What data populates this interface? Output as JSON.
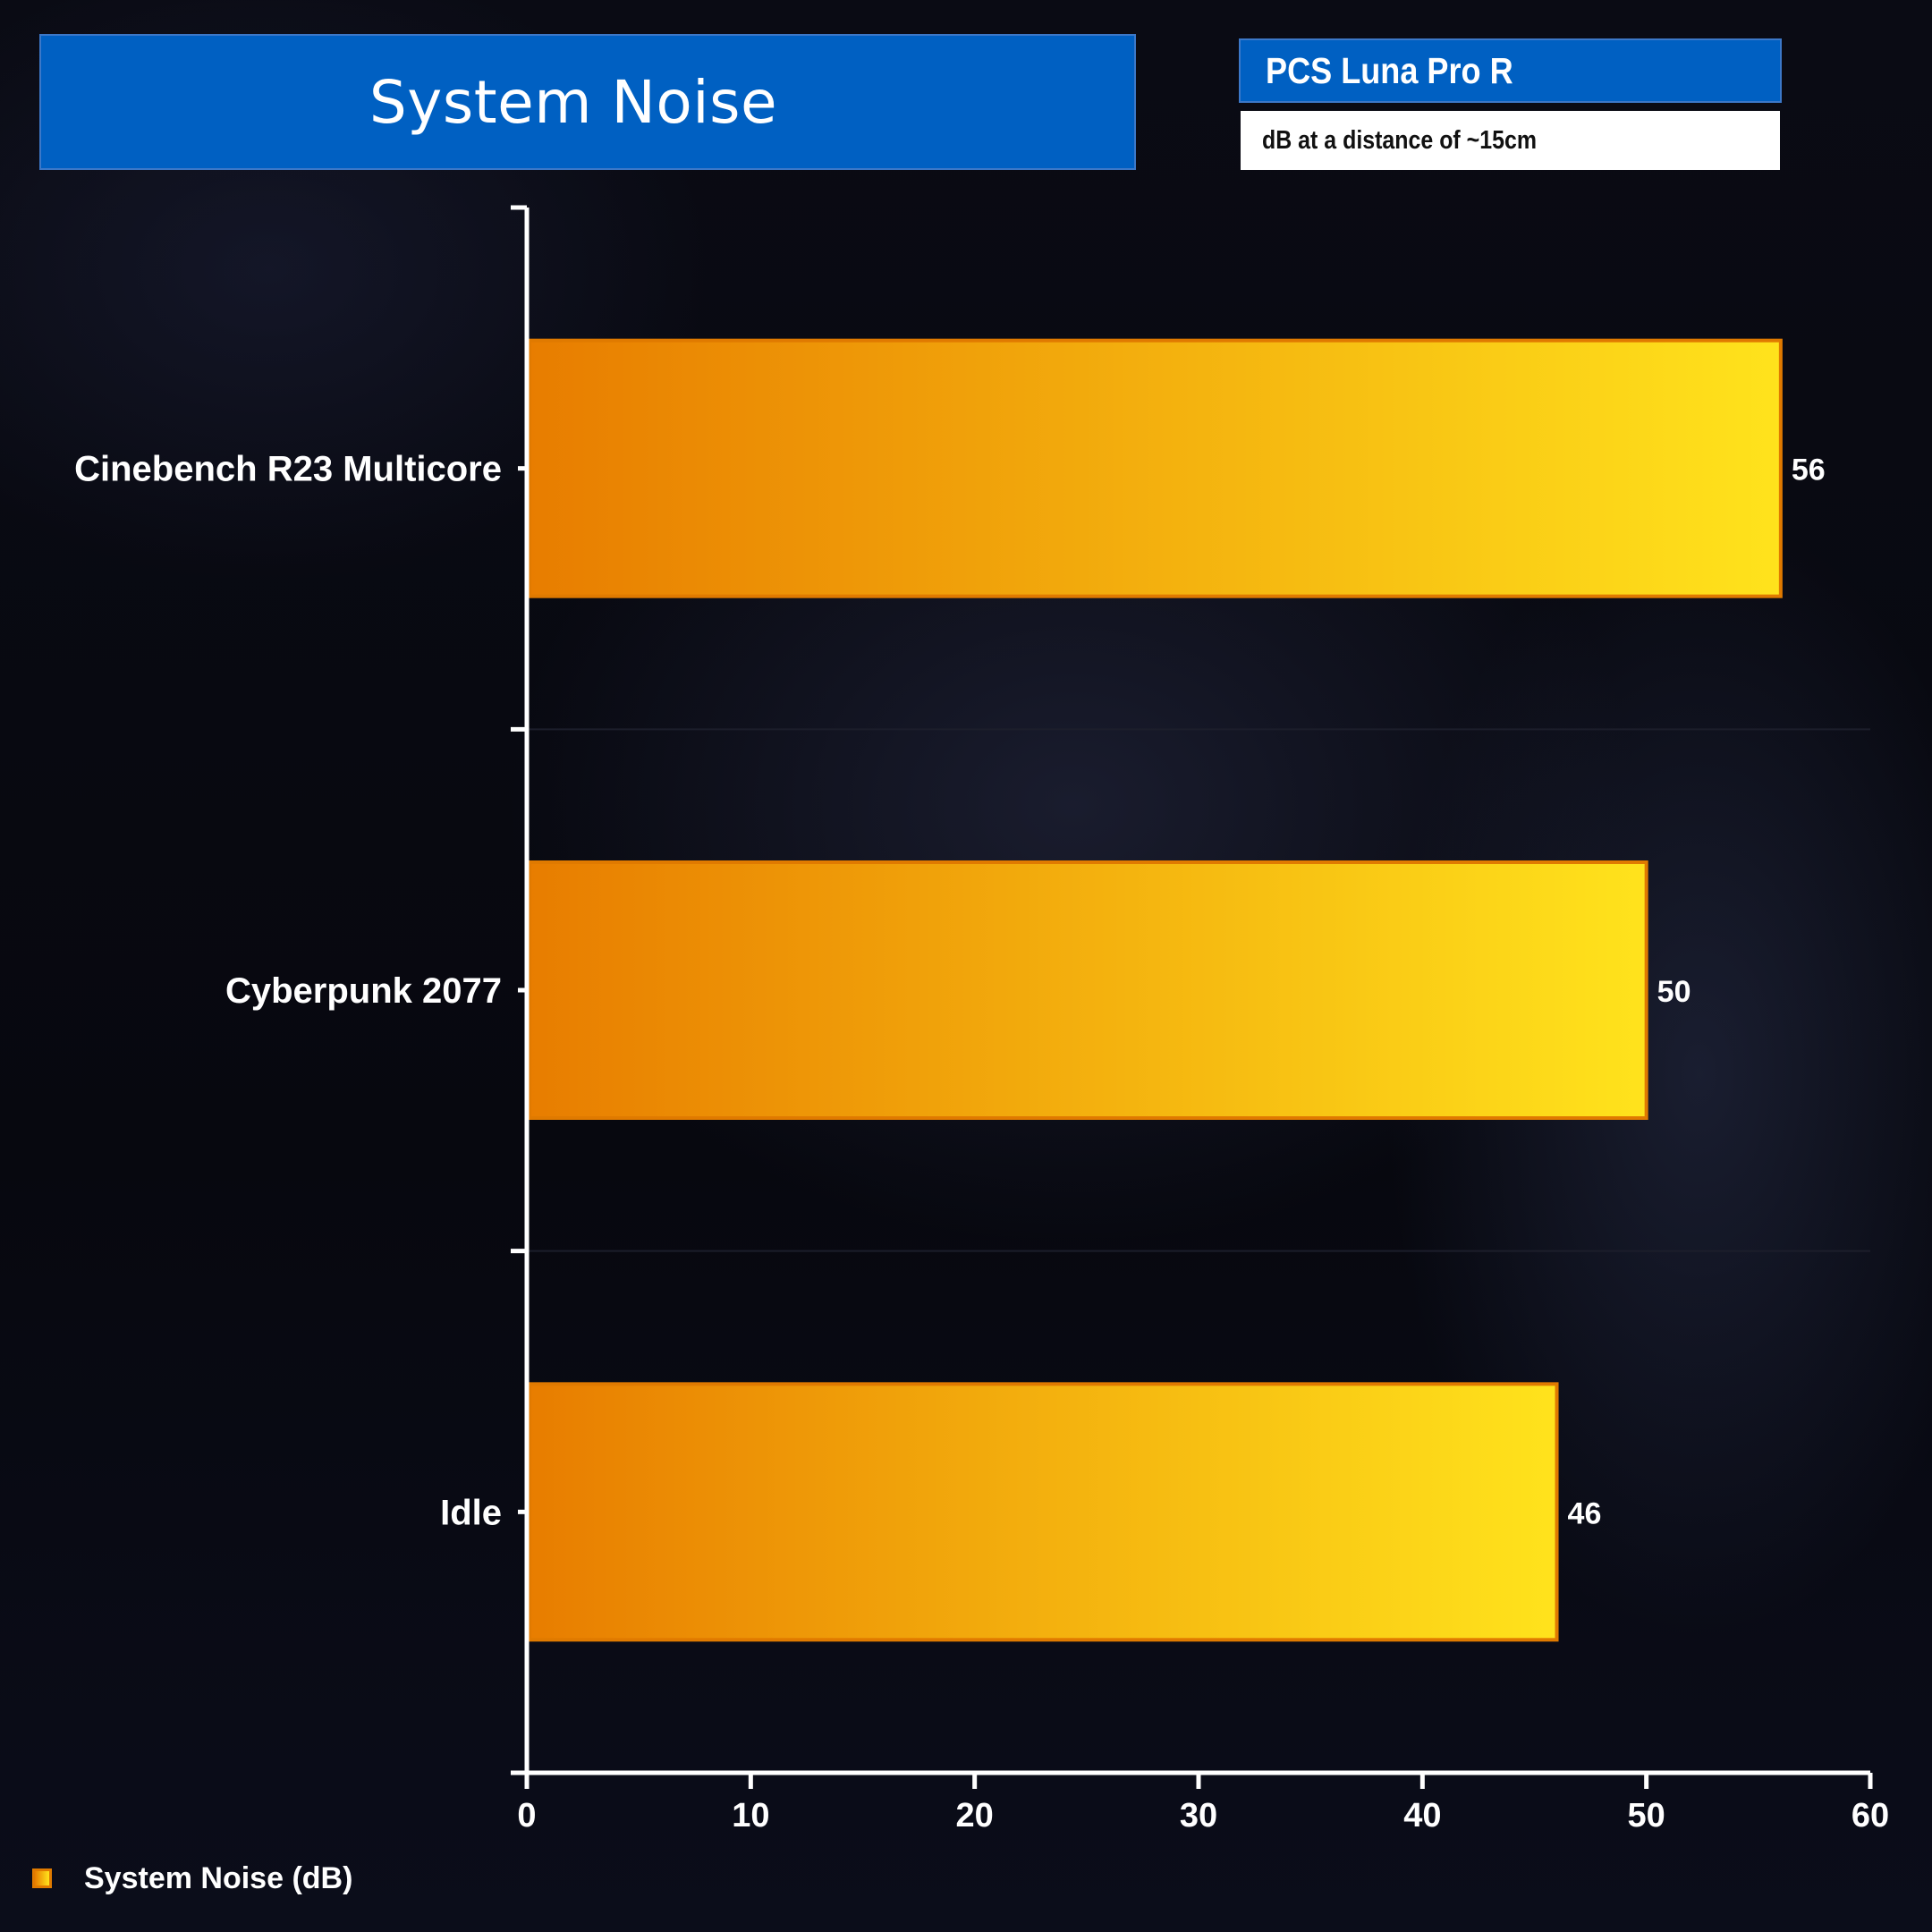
{
  "header": {
    "title": "System Noise",
    "device": "PCS Luna Pro R",
    "unit_note": "dB at a distance of  ~15cm"
  },
  "legend": {
    "label": "System Noise (dB)"
  },
  "colors": {
    "title_bg": "#0060c2",
    "bar_start": "#e87d00",
    "bar_end": "#ffe31c",
    "bar_border": "#e07a00",
    "axis": "#ffffff"
  },
  "chart_data": {
    "type": "bar",
    "orientation": "horizontal",
    "title": "System Noise",
    "categories": [
      "Cinebench R23 Multicore",
      "Cyberpunk 2077",
      "Idle"
    ],
    "series": [
      {
        "name": "System Noise (dB)",
        "values": [
          56,
          50,
          46
        ]
      }
    ],
    "data_labels": [
      "56",
      "50",
      "46"
    ],
    "xlim": [
      0,
      60
    ],
    "x_ticks": [
      0,
      10,
      20,
      30,
      40,
      50,
      60
    ],
    "grid": false,
    "legend_position": "bottom-left"
  }
}
